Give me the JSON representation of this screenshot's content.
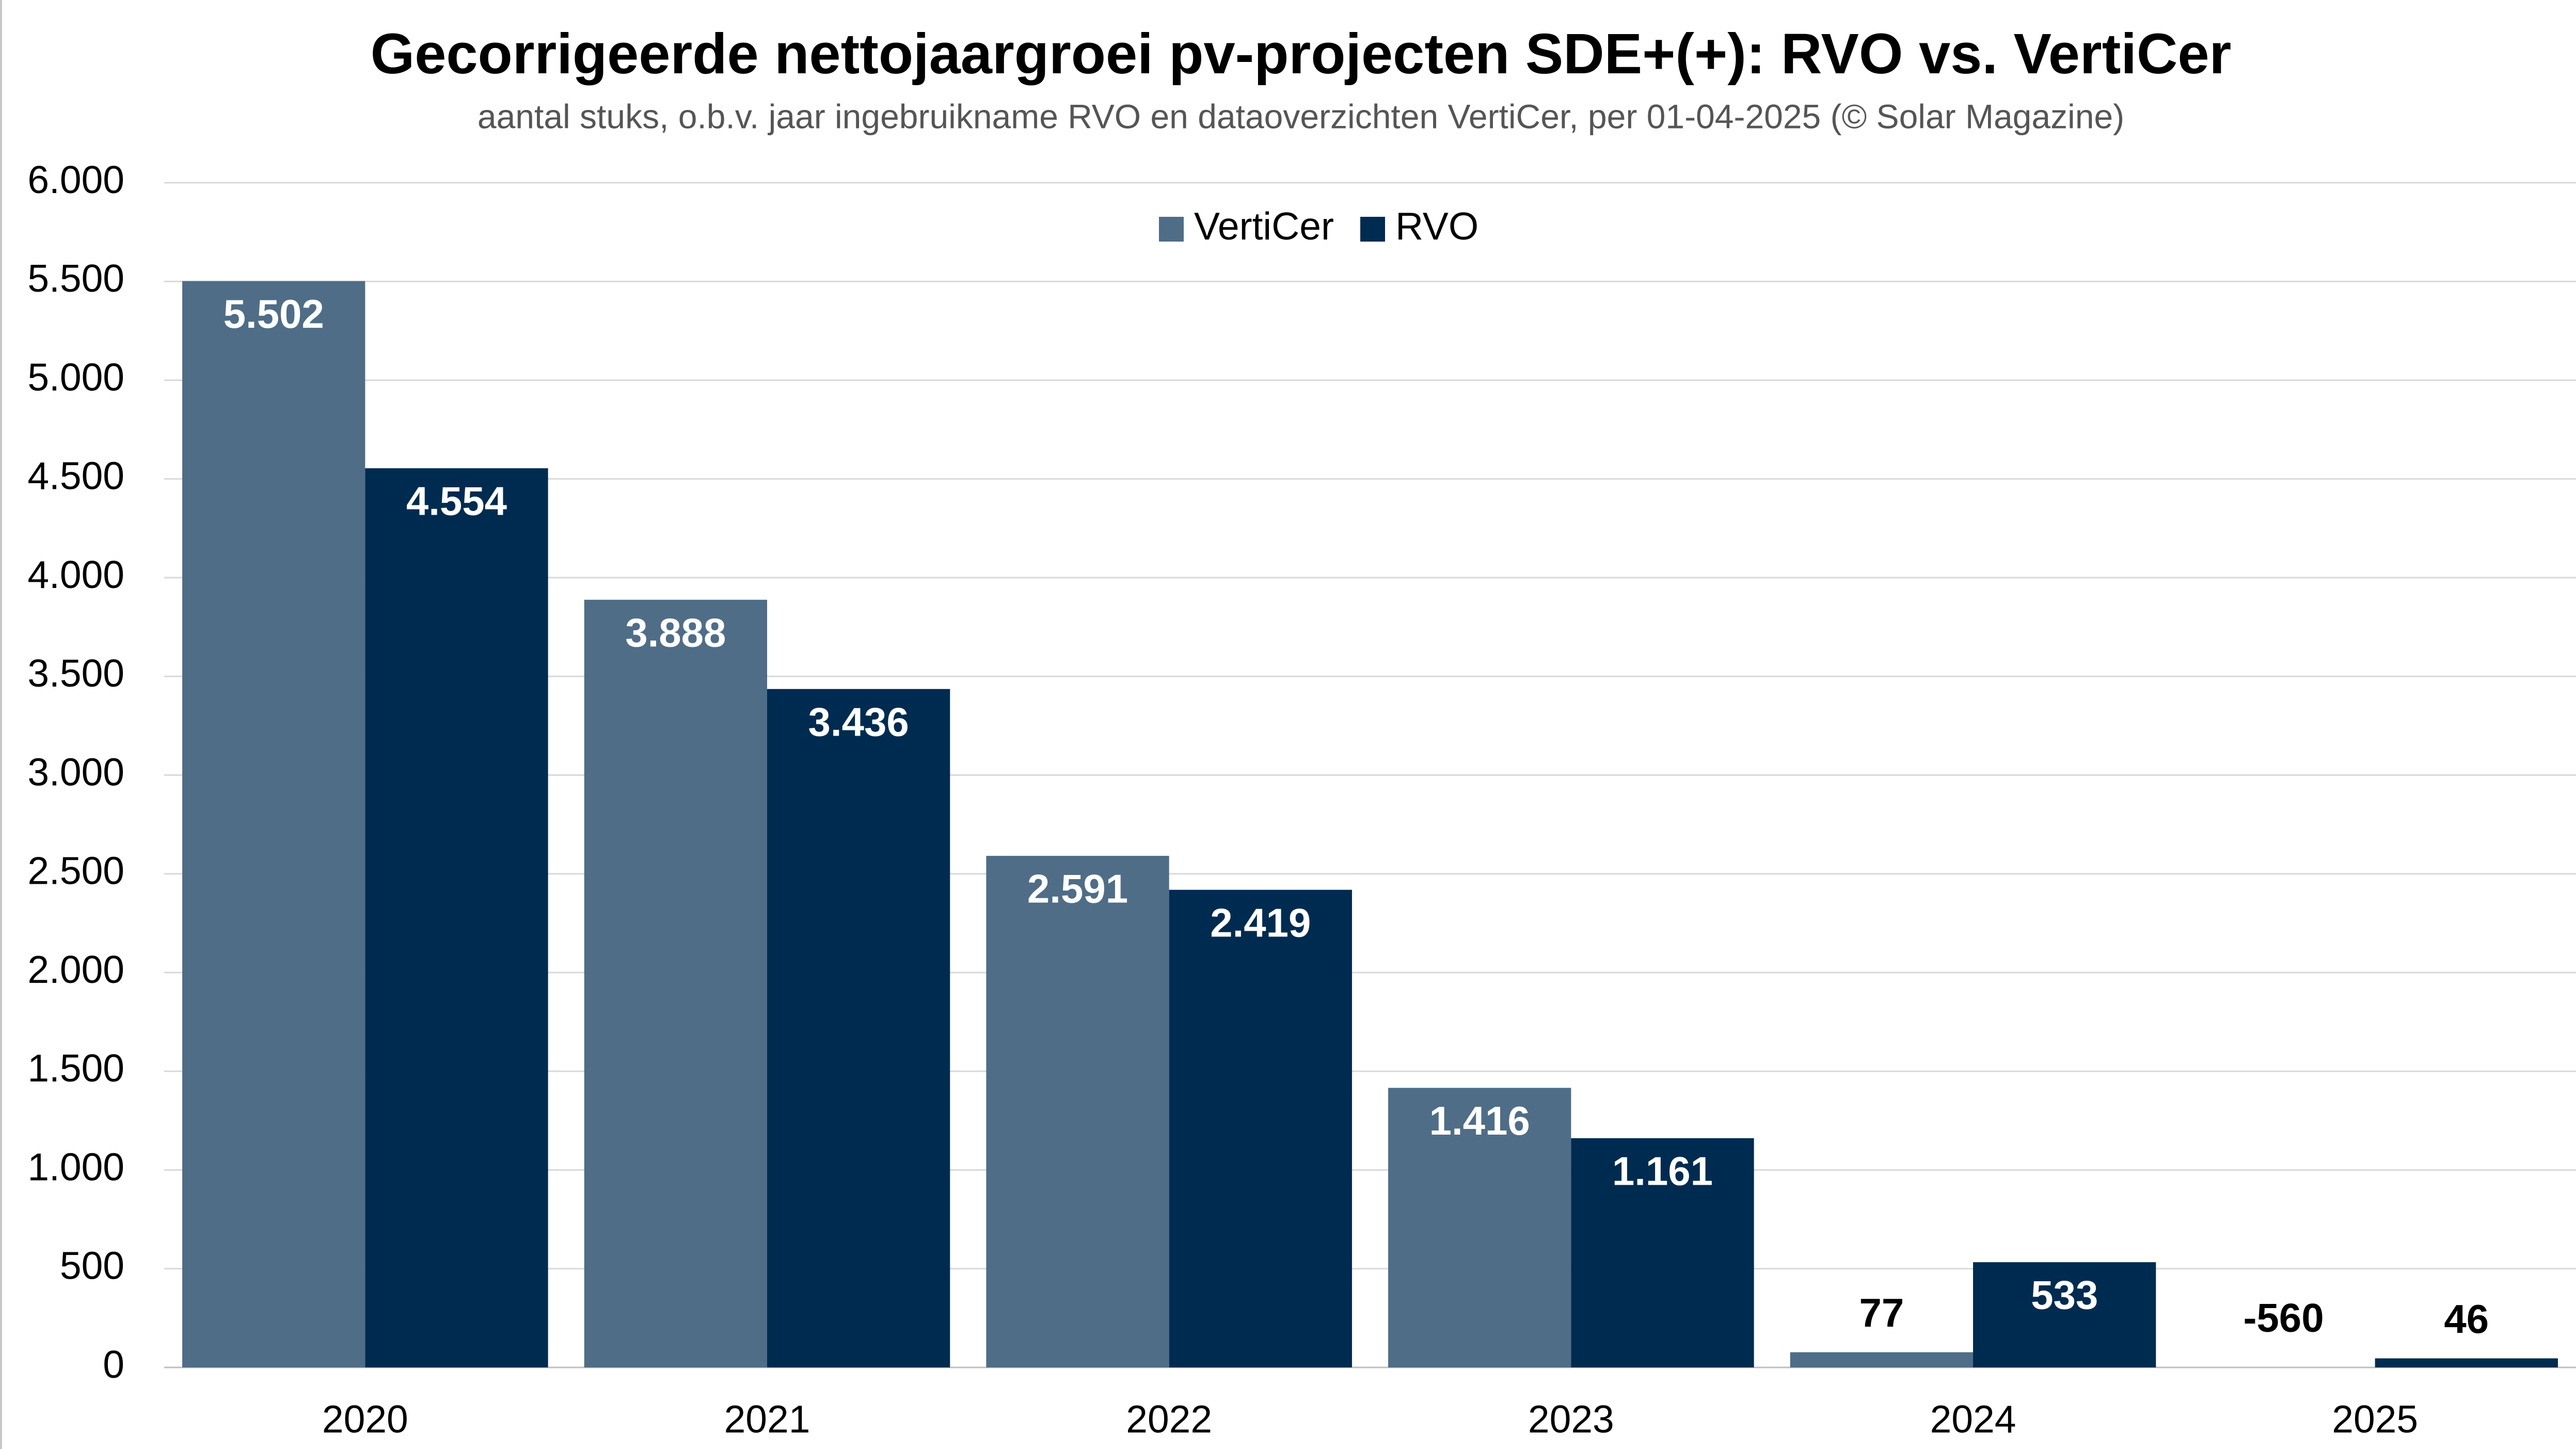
{
  "chart_data": {
    "type": "bar",
    "title": "Gecorrigeerde nettojaargroei pv-projecten SDE+(+): RVO vs. VertiCer",
    "subtitle": "aantal stuks, o.b.v. jaar ingebruikname RVO en dataoverzichten VertiCer, per 01-04-2025 (© Solar Magazine)",
    "categories": [
      "2020",
      "2021",
      "2022",
      "2023",
      "2024",
      "2025"
    ],
    "series": [
      {
        "name": "VertiCer",
        "color": "#4f6d87",
        "values": [
          5502,
          3888,
          2591,
          1416,
          77,
          -560
        ],
        "value_labels": [
          "5.502",
          "3.888",
          "2.591",
          "1.416",
          "77",
          "-560"
        ]
      },
      {
        "name": "RVO",
        "color": "#002b50",
        "values": [
          4554,
          3436,
          2419,
          1161,
          533,
          46
        ],
        "value_labels": [
          "4.554",
          "3.436",
          "2.419",
          "1.161",
          "533",
          "46"
        ]
      }
    ],
    "ylim": [
      0,
      6000
    ],
    "yticks": [
      0,
      500,
      {
        "value": 1000,
        "label": "1.000"
      },
      {
        "value": 1500,
        "label": "1.500"
      },
      {
        "value": 2000,
        "label": "2.000"
      },
      {
        "value": 2500,
        "label": "2.500"
      },
      {
        "value": 3000,
        "label": "3.000"
      },
      {
        "value": 3500,
        "label": "3.500"
      },
      {
        "value": 4000,
        "label": "4.000"
      },
      {
        "value": 4500,
        "label": "4.500"
      },
      {
        "value": 5000,
        "label": "5.000"
      },
      {
        "value": 5500,
        "label": "5.500"
      },
      {
        "value": 6000,
        "label": "6.000"
      }
    ],
    "grid": true,
    "legend": "top"
  }
}
